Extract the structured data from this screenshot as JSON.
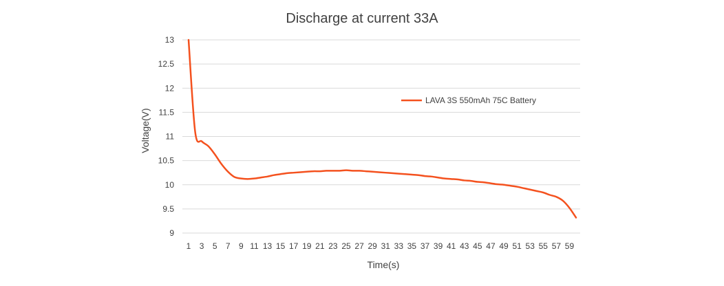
{
  "chart_data": {
    "type": "line",
    "title": "Discharge at current 33A",
    "xlabel": "Time(s)",
    "ylabel": "Voltage(V)",
    "ylim": [
      9,
      13
    ],
    "yticks": [
      "9",
      "9.5",
      "10",
      "10.5",
      "11",
      "11.5",
      "12",
      "12.5",
      "13"
    ],
    "xticks": [
      "1",
      "3",
      "5",
      "7",
      "9",
      "11",
      "13",
      "15",
      "17",
      "19",
      "21",
      "23",
      "25",
      "27",
      "29",
      "31",
      "33",
      "35",
      "37",
      "39",
      "41",
      "43",
      "45",
      "47",
      "49",
      "51",
      "53",
      "55",
      "57",
      "59"
    ],
    "grid": "horizontal",
    "legend_position": "right",
    "series": [
      {
        "name": "LAVA 3S 550mAh 75C Battery",
        "color": "#f4511e",
        "x": [
          1,
          2,
          3,
          4,
          5,
          6,
          7,
          8,
          9,
          10,
          11,
          12,
          13,
          14,
          15,
          16,
          17,
          18,
          19,
          20,
          21,
          22,
          23,
          24,
          25,
          26,
          27,
          28,
          29,
          30,
          31,
          32,
          33,
          34,
          35,
          36,
          37,
          38,
          39,
          40,
          41,
          42,
          43,
          44,
          45,
          46,
          47,
          48,
          49,
          50,
          51,
          52,
          53,
          54,
          55,
          56,
          57,
          58,
          59,
          60
        ],
        "values": [
          13.0,
          11.1,
          10.9,
          10.8,
          10.63,
          10.43,
          10.27,
          10.16,
          10.13,
          10.12,
          10.13,
          10.15,
          10.17,
          10.2,
          10.22,
          10.24,
          10.25,
          10.26,
          10.27,
          10.28,
          10.28,
          10.29,
          10.29,
          10.29,
          10.3,
          10.29,
          10.29,
          10.28,
          10.27,
          10.26,
          10.25,
          10.24,
          10.23,
          10.22,
          10.21,
          10.2,
          10.18,
          10.17,
          10.15,
          10.13,
          10.12,
          10.11,
          10.09,
          10.08,
          10.06,
          10.05,
          10.03,
          10.01,
          10.0,
          9.98,
          9.96,
          9.93,
          9.9,
          9.87,
          9.84,
          9.79,
          9.75,
          9.67,
          9.52,
          9.32
        ]
      }
    ]
  }
}
